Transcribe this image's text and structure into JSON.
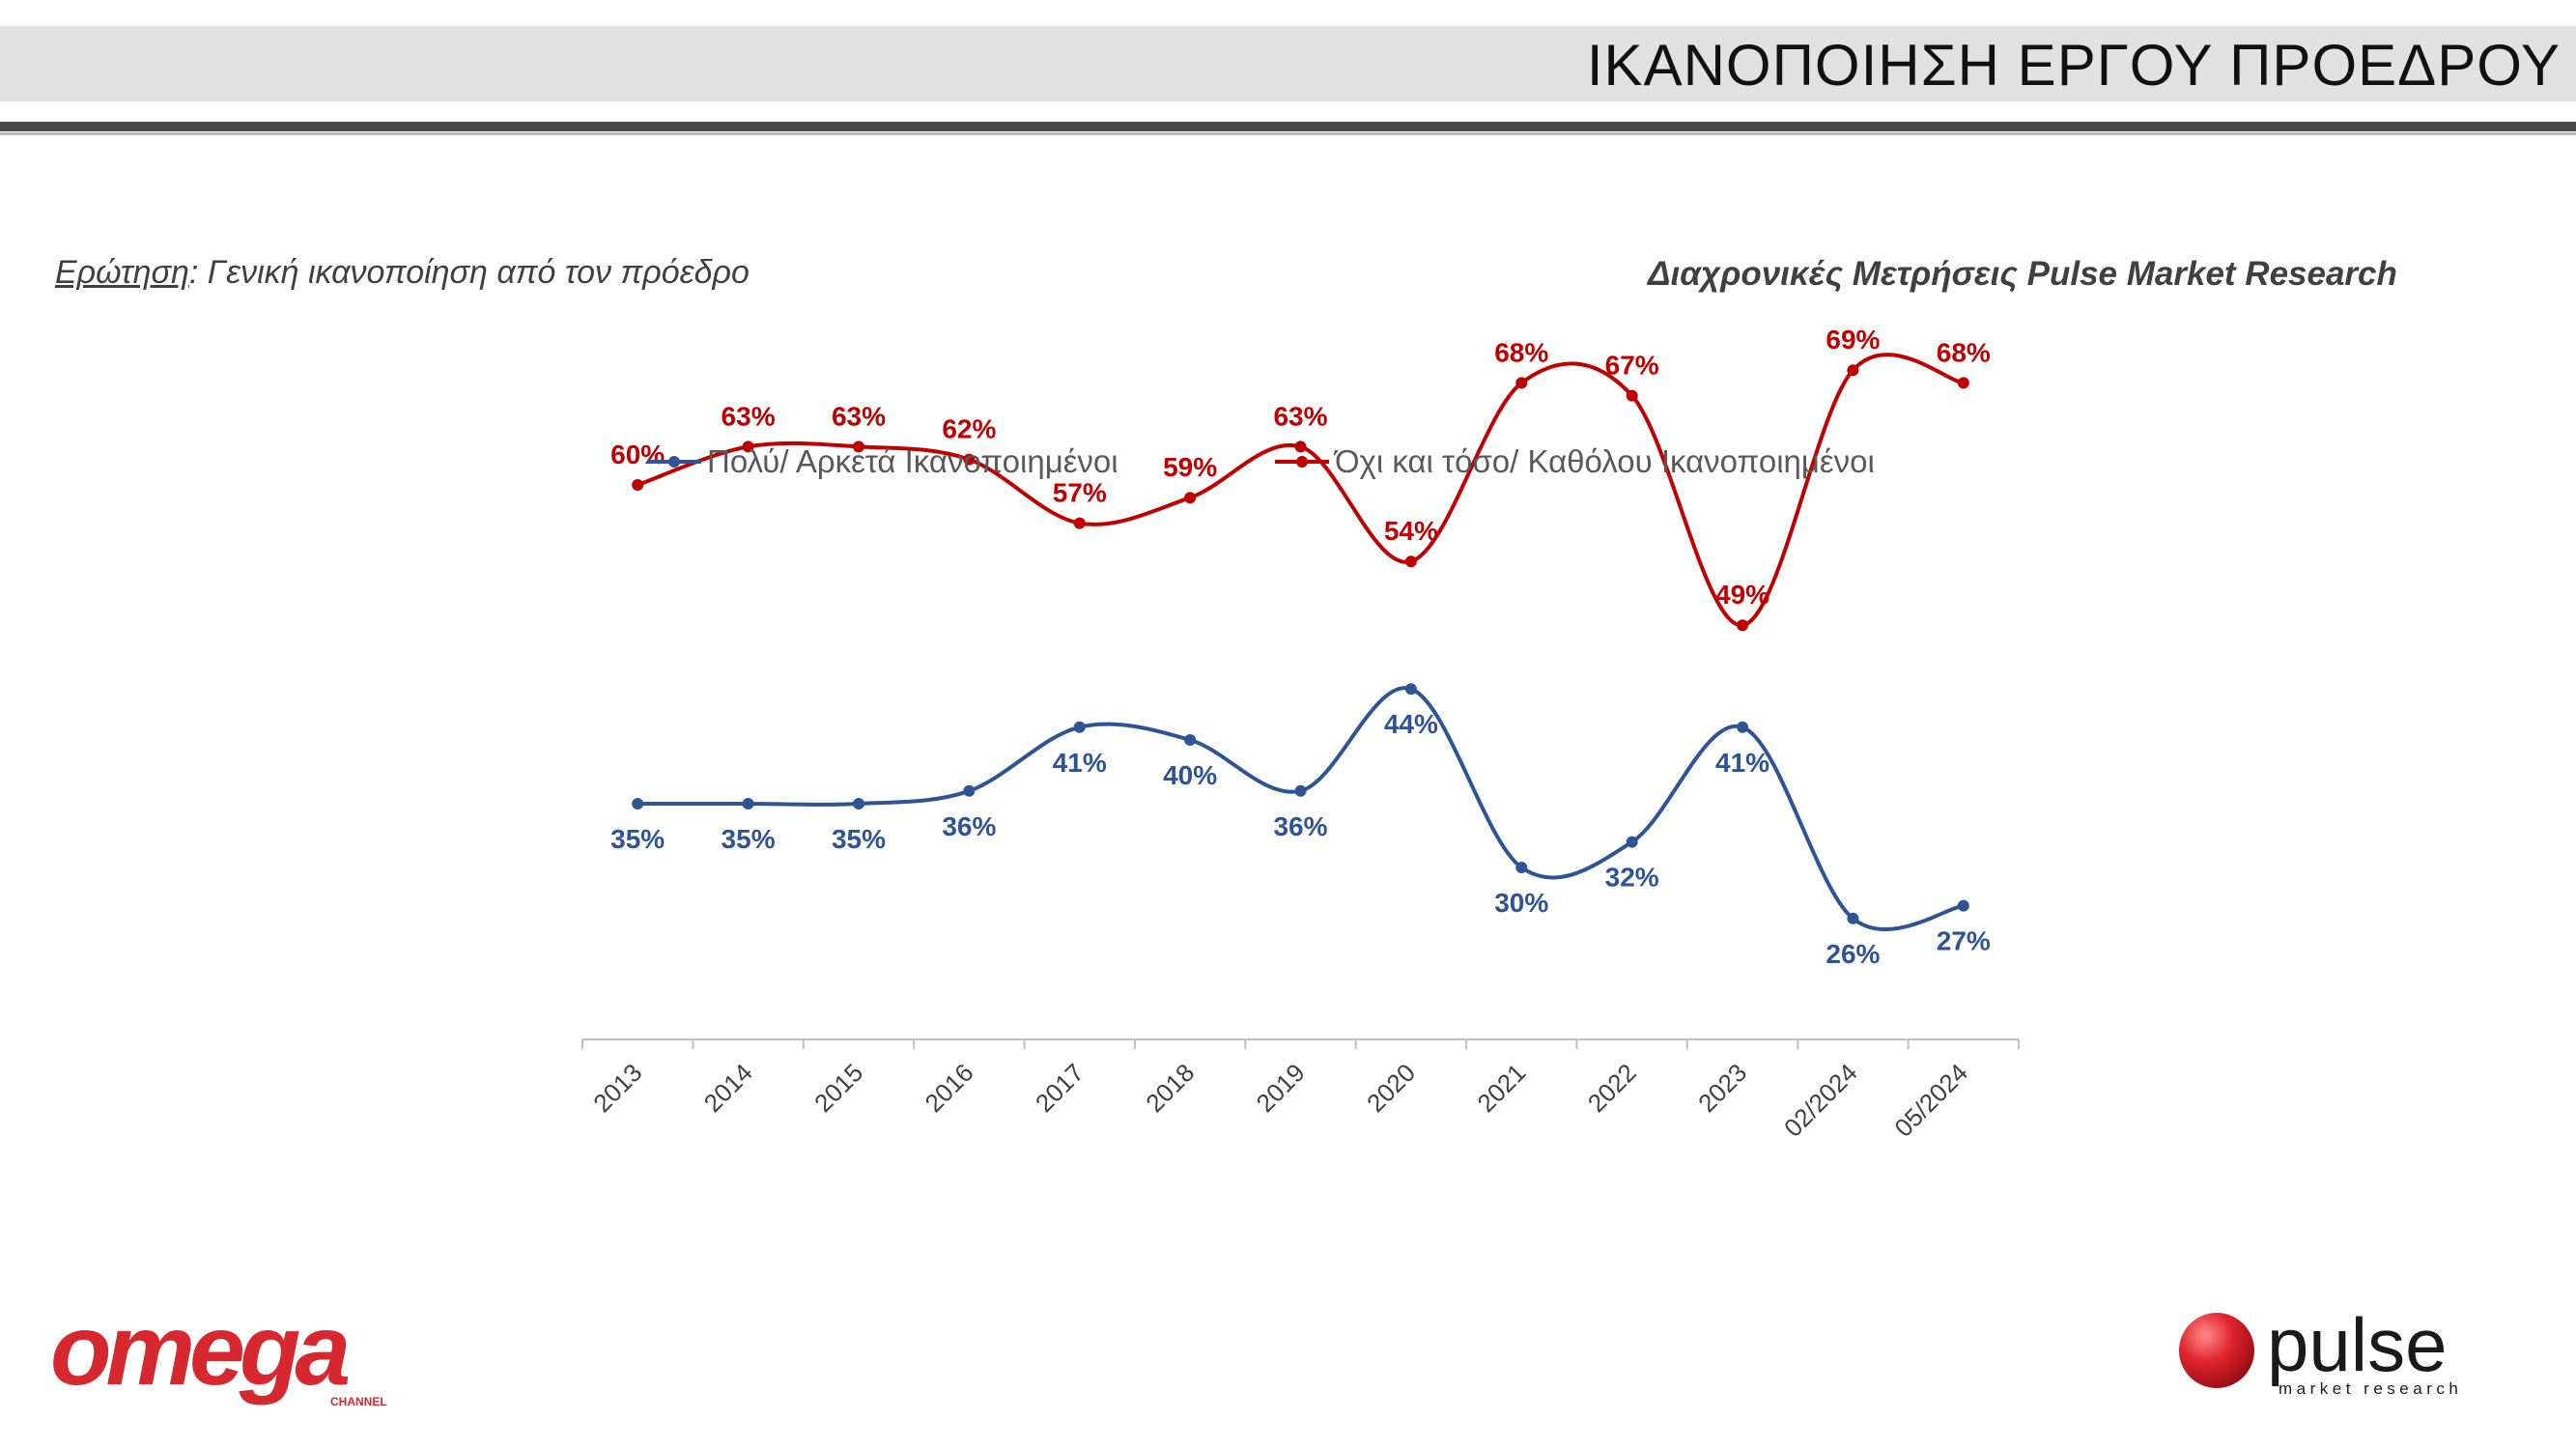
{
  "header": {
    "title": "ΙΚΑΝΟΠΟΙΗΣΗ ΕΡΓΟΥ ΠΡΟΕΔΡΟΥ"
  },
  "question": {
    "label": "Ερώτηση",
    "text": ": Γενική ικανοποίηση από τον πρόεδρο"
  },
  "source_note": "Διαχρονικές Μετρήσεις Pulse Market Research",
  "logos": {
    "left": {
      "text": "omega",
      "subtext": "CHANNEL"
    },
    "right": {
      "text": "pulse",
      "subtext": "market research"
    }
  },
  "colors": {
    "series_satisfied": "#2e5496",
    "series_dissatisfied": "#c00000",
    "axis": "#bfbfbf",
    "omega_red": "#d7282f",
    "pulse_red": "#d41e26"
  },
  "chart_data": {
    "type": "line",
    "categories": [
      "2013",
      "2014",
      "2015",
      "2016",
      "2017",
      "2018",
      "2019",
      "2020",
      "2021",
      "2022",
      "2023",
      "02/2024",
      "05/2024"
    ],
    "series": [
      {
        "name": "Πολύ/ Αρκετά Ικανοποιημένοι",
        "color": "#2e5496",
        "values": [
          35,
          35,
          35,
          36,
          41,
          40,
          36,
          44,
          30,
          32,
          41,
          26,
          27
        ],
        "labels": [
          "35%",
          "35%",
          "35%",
          "36%",
          "41%",
          "40%",
          "36%",
          "44%",
          "30%",
          "32%",
          "41%",
          "26%",
          "27%"
        ],
        "label_position": "below"
      },
      {
        "name": "Όχι και τόσο/ Καθόλου Ικανοποιημένοι",
        "color": "#c00000",
        "values": [
          60,
          63,
          63,
          62,
          57,
          59,
          63,
          54,
          68,
          67,
          49,
          69,
          68
        ],
        "labels": [
          "60%",
          "63%",
          "63%",
          "62%",
          "57%",
          "59%",
          "63%",
          "54%",
          "68%",
          "67%",
          "49%",
          "69%",
          "68%"
        ],
        "label_position": "above"
      }
    ],
    "smooth": true,
    "legend": "top-center",
    "grid": false,
    "ylim": [
      0,
      100
    ],
    "xlabel": "",
    "ylabel": ""
  }
}
